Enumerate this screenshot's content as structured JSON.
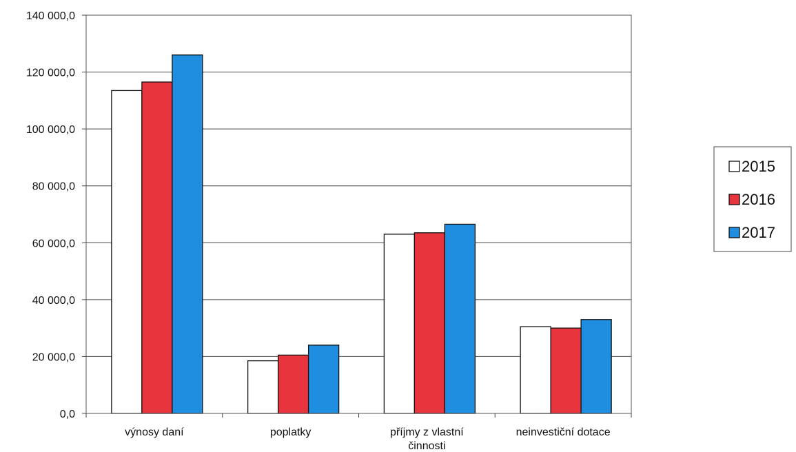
{
  "chart_data": {
    "type": "bar",
    "title": "",
    "xlabel": "",
    "ylabel": "",
    "categories": [
      [
        "výnosy daní"
      ],
      [
        "poplatky"
      ],
      [
        "příjmy z vlastní",
        "činnosti"
      ],
      [
        "neinvestiční dotace"
      ]
    ],
    "series": [
      {
        "name": "2015",
        "color": "#ffffff",
        "values": [
          113500,
          18500,
          63000,
          30500
        ]
      },
      {
        "name": "2016",
        "color": "#e8343c",
        "values": [
          116500,
          20500,
          63500,
          30000
        ]
      },
      {
        "name": "2017",
        "color": "#1f8ee0",
        "values": [
          126000,
          24000,
          66500,
          33000
        ]
      }
    ],
    "ylim": [
      0,
      140000
    ],
    "yticks": [
      "0,0",
      "20 000,0",
      "40 000,0",
      "60 000,0",
      "80 000,0",
      "100 000,0",
      "120 000,0",
      "140 000,0"
    ],
    "grid": true,
    "legend_position": "right"
  }
}
